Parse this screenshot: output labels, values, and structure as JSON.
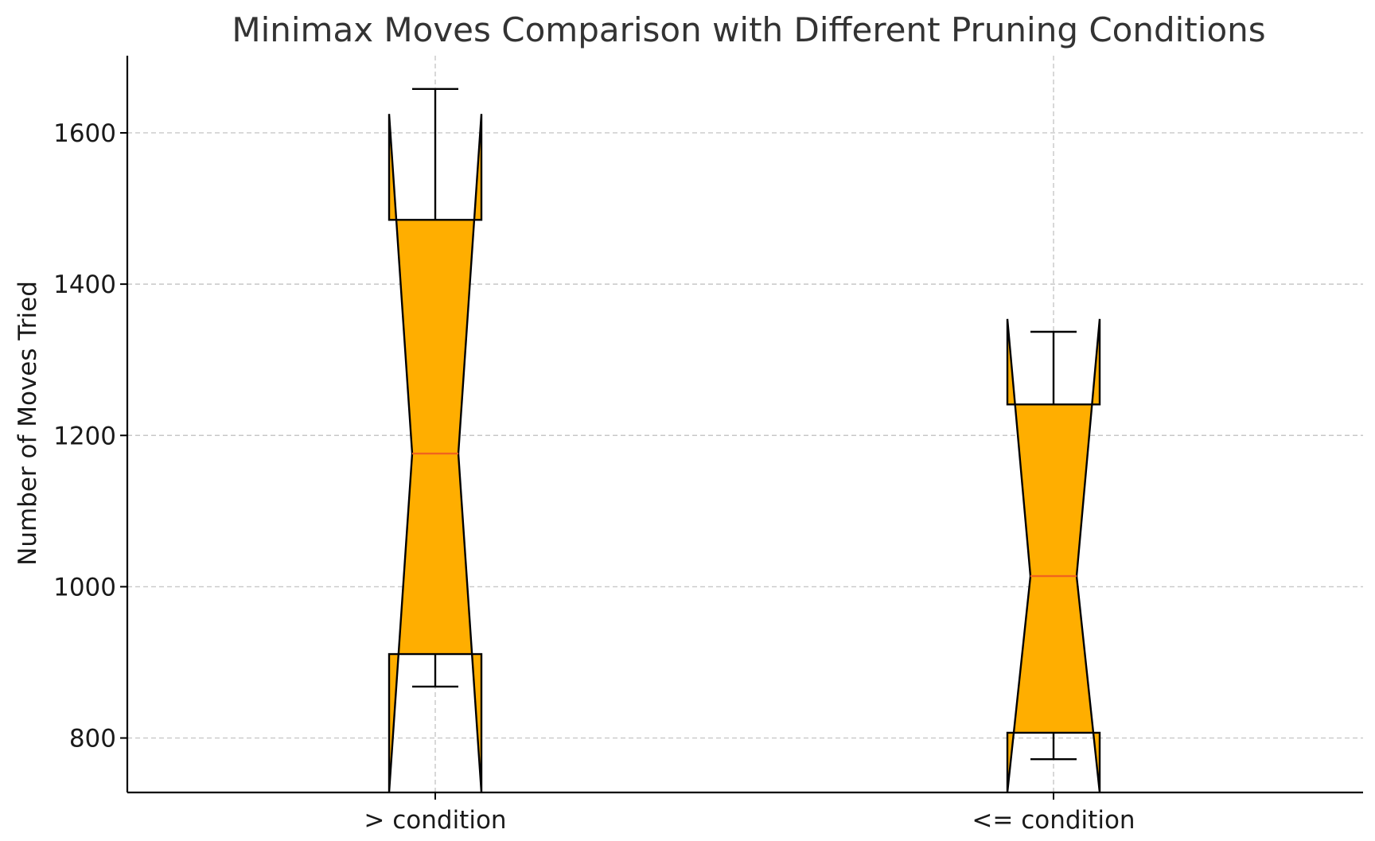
{
  "chart_data": {
    "type": "boxplot",
    "title": "Minimax Moves Comparison with Different Pruning Conditions",
    "xlabel": "",
    "ylabel": "Number of Moves Tried",
    "ylim": [
      728,
      1702
    ],
    "yticks": [
      800,
      1000,
      1200,
      1400,
      1600
    ],
    "ytick_labels": [
      "800",
      "1000",
      "1200",
      "1400",
      "1600"
    ],
    "grid": true,
    "notched": true,
    "categories": [
      "> condition",
      "<= condition"
    ],
    "boxes": [
      {
        "label": "> condition",
        "whisker_low": 868,
        "q1": 911,
        "median": 1176,
        "q3": 1485,
        "whisker_high": 1658,
        "notch_low": 728,
        "notch_high": 1625
      },
      {
        "label": "<= condition",
        "whisker_low": 772,
        "q1": 807,
        "median": 1014,
        "q3": 1241,
        "whisker_high": 1337,
        "notch_low": 728,
        "notch_high": 1354
      }
    ],
    "colors": {
      "box_fill": "#FFAE00",
      "median": "#F0641E",
      "edge": "#000000",
      "grid": "#C8C8C8"
    }
  }
}
